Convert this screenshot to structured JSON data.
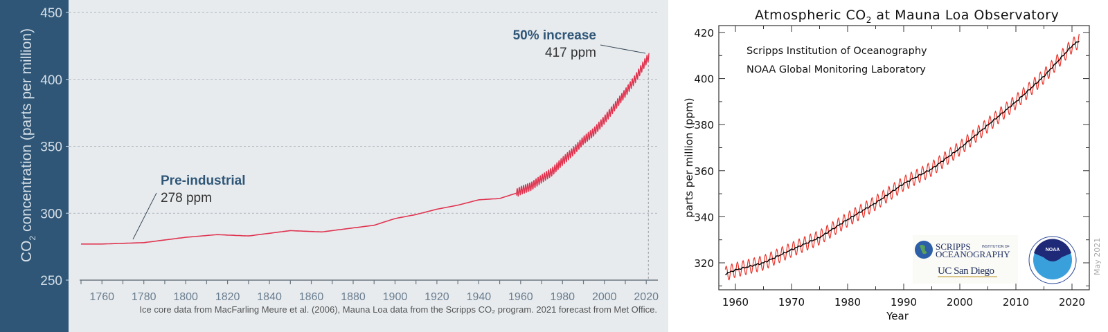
{
  "chart_data": [
    {
      "type": "line",
      "title": "",
      "ylabel": "CO2 concentration (parts per million)",
      "ylabel_main": "CO",
      "ylabel_sub": "2",
      "ylabel_rest": " concentration (parts per million)",
      "xlabel": "",
      "xlim": [
        1750,
        2023
      ],
      "ylim": [
        250,
        450
      ],
      "yticks": [
        "250",
        "300",
        "350",
        "400",
        "450"
      ],
      "xticks": [
        "1760",
        "1780",
        "1800",
        "1820",
        "1840",
        "1860",
        "1880",
        "1900",
        "1920",
        "1940",
        "1960",
        "1980",
        "2000",
        "2020"
      ],
      "grid": "horizontal dashed",
      "series_color": "#e0334f",
      "ice_core": {
        "x": [
          1750,
          1760,
          1780,
          1790,
          1800,
          1815,
          1830,
          1850,
          1865,
          1880,
          1890,
          1900,
          1910,
          1920,
          1930,
          1940,
          1950,
          1958
        ],
        "y": [
          277,
          277,
          278,
          280,
          282,
          284,
          283,
          287,
          286,
          289,
          291,
          296,
          299,
          303,
          306,
          310,
          311,
          315
        ]
      },
      "mauna_loa_annual": {
        "x": [
          1958,
          1960,
          1965,
          1970,
          1975,
          1980,
          1985,
          1990,
          1995,
          2000,
          2005,
          2010,
          2015,
          2020,
          2021
        ],
        "y": [
          315,
          317,
          320,
          325.7,
          331,
          338.8,
          346,
          354.4,
          360.8,
          369.7,
          379.8,
          389.9,
          401,
          414.2,
          416.4
        ]
      },
      "seasonal_amplitude_ppm": 3,
      "annotations": [
        {
          "title": "Pre-industrial",
          "value": "278 ppm",
          "year": 1775,
          "ppm": 278
        },
        {
          "title": "50% increase",
          "value": "417 ppm",
          "year": 2021,
          "ppm": 417
        }
      ],
      "source": "Ice core data from MacFarling Meure et al. (2006), Mauna Loa data from the Scripps CO₂ program. 2021 forecast from Met Office."
    },
    {
      "type": "line",
      "title_main": "Atmospheric CO",
      "title_sub": "2",
      "title_rest": " at Mauna Loa Observatory",
      "xlabel": "Year",
      "ylabel": "parts per million (ppm)",
      "xlim": [
        1957,
        2023
      ],
      "ylim": [
        308,
        423
      ],
      "xticks": [
        "1960",
        "1970",
        "1980",
        "1990",
        "2000",
        "2010",
        "2020"
      ],
      "yticks": [
        "320",
        "340",
        "360",
        "380",
        "400",
        "420"
      ],
      "grid": "off",
      "credits": [
        "Scripps Institution of Oceanography",
        "NOAA Global Monitoring Laboratory"
      ],
      "date_stamp": "May 2021",
      "monthly_color": "#e8332a",
      "trend_color": "#000000",
      "annual_mean": {
        "x": [
          1958,
          1960,
          1965,
          1970,
          1975,
          1980,
          1985,
          1990,
          1995,
          2000,
          2005,
          2010,
          2015,
          2020,
          2021.3
        ],
        "y": [
          315,
          316.9,
          320,
          325.7,
          331,
          338.8,
          346,
          354.4,
          360.8,
          369.7,
          379.8,
          389.9,
          401,
          414.2,
          416.5
        ]
      },
      "seasonal_amplitude_ppm": 3.2,
      "logos": {
        "scripps_line1": "SCRIPPS",
        "scripps_line1b": "INSTITUTION OF",
        "scripps_line2": "OCEANOGRAPHY",
        "ucsd": "UC San Diego",
        "noaa": "NOAA"
      }
    }
  ]
}
